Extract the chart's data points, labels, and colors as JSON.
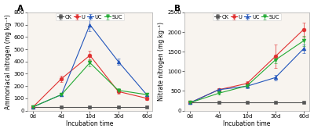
{
  "x_labels": [
    "0d",
    "4d",
    "10d",
    "30d",
    "60d"
  ],
  "panel_A": {
    "title": "A",
    "ylabel": "Ammoniacal nitrogen (mg kg⁻¹)",
    "xlabel": "Incubation time",
    "ylim": [
      0,
      800
    ],
    "yticks": [
      0,
      100,
      200,
      300,
      400,
      500,
      600,
      700,
      800
    ],
    "series": {
      "CK": {
        "values": [
          30,
          30,
          30,
          30,
          30
        ]
      },
      "U": {
        "values": [
          30,
          260,
          450,
          155,
          100
        ]
      },
      "UC": {
        "values": [
          30,
          130,
          700,
          400,
          130
        ]
      },
      "SUC": {
        "values": [
          30,
          130,
          390,
          165,
          130
        ]
      }
    },
    "error_bars": {
      "CK": [
        5,
        5,
        5,
        5,
        5
      ],
      "U": [
        10,
        25,
        40,
        20,
        12
      ],
      "UC": [
        10,
        15,
        55,
        25,
        12
      ],
      "SUC": [
        10,
        15,
        28,
        18,
        12
      ]
    }
  },
  "panel_B": {
    "title": "B",
    "ylabel": "Nitrate nitrogen (mg kg⁻¹)",
    "xlabel": "Incubation time",
    "ylim": [
      0,
      2500
    ],
    "yticks": [
      0,
      500,
      1000,
      1500,
      2000,
      2500
    ],
    "series": {
      "CK": {
        "values": [
          200,
          200,
          200,
          200,
          200
        ]
      },
      "U": {
        "values": [
          200,
          530,
          690,
          1380,
          2070
        ]
      },
      "UC": {
        "values": [
          200,
          530,
          620,
          840,
          1580
        ]
      },
      "SUC": {
        "values": [
          200,
          440,
          630,
          1290,
          1780
        ]
      }
    },
    "error_bars": {
      "CK": [
        10,
        10,
        10,
        10,
        10
      ],
      "U": [
        15,
        35,
        55,
        300,
        180
      ],
      "UC": [
        15,
        35,
        45,
        70,
        110
      ],
      "SUC": [
        15,
        30,
        50,
        90,
        130
      ]
    }
  },
  "legend_order": [
    "CK",
    "U",
    "UC",
    "SUC"
  ],
  "colors": {
    "CK": "#555555",
    "U": "#e03030",
    "UC": "#2255bb",
    "SUC": "#22aa33"
  },
  "markers": {
    "CK": "s",
    "U": "o",
    "UC": "^",
    "SUC": "v"
  },
  "bg_outer": "#ffffff",
  "bg_axes": "#f8f4ef",
  "markersize": 3.5,
  "linewidth": 0.8,
  "fontsize_tick": 5.0,
  "fontsize_label": 5.5,
  "fontsize_legend": 4.8,
  "fontsize_panel": 7.5
}
